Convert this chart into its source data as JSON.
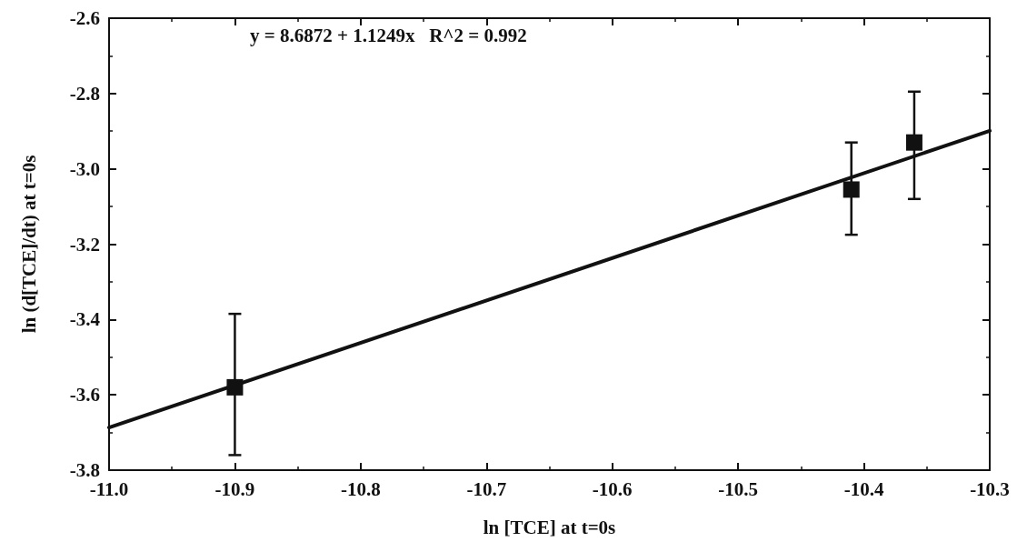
{
  "chart_data": {
    "type": "scatter",
    "xlabel": "ln [TCE] at t=0s",
    "ylabel": "ln (d[TCE]/dt) at t=0s",
    "annotations": [
      "y = 8.6872 + 1.1249x   R^2 = 0.992"
    ],
    "marker": "square",
    "grid": false,
    "xlim": [
      -11.0,
      -10.3
    ],
    "xticks": [
      {
        "value": -11.0,
        "label": "-11.0"
      },
      -10.9,
      -10.8,
      -10.7,
      -10.6,
      -10.5,
      -10.4,
      -10.3
    ],
    "ylim": [
      -3.8,
      -2.6
    ],
    "yticks": [
      -3.8,
      -3.6,
      -3.4,
      -3.2,
      {
        "value": -3.0,
        "label": "-3.0"
      },
      -2.8,
      -2.6
    ],
    "series": [
      {
        "color": "#111111",
        "x": [
          -10.9,
          -10.41,
          -10.36
        ],
        "values": [
          -3.58,
          -3.055,
          -2.93
        ],
        "errors": [
          [
            -3.76,
            -3.385
          ],
          [
            -3.175,
            -2.93
          ],
          [
            -3.08,
            -2.795
          ]
        ]
      },
      {
        "type": "line",
        "color": "#111111",
        "line_style": "solid",
        "marker": "none",
        "x": [
          -11.0,
          -10.3
        ],
        "values": [
          -3.687,
          -2.899
        ]
      }
    ]
  }
}
